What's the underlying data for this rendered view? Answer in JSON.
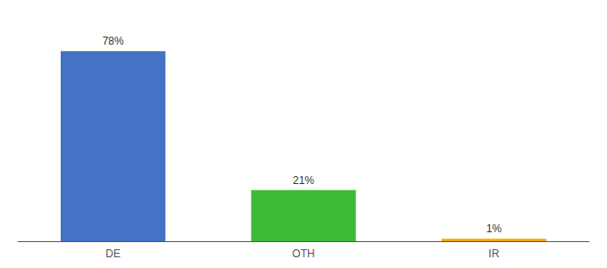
{
  "chart_data": {
    "type": "bar",
    "categories": [
      "DE",
      "OTH",
      "IR"
    ],
    "values": [
      78,
      21,
      1
    ],
    "value_labels": [
      "78%",
      "21%",
      "1%"
    ],
    "colors": [
      "#4472c4",
      "#3dbb35",
      "#ffa500"
    ],
    "ylim": [
      0,
      88
    ],
    "grid": false,
    "tick_labels": "x",
    "data_labels": true
  }
}
